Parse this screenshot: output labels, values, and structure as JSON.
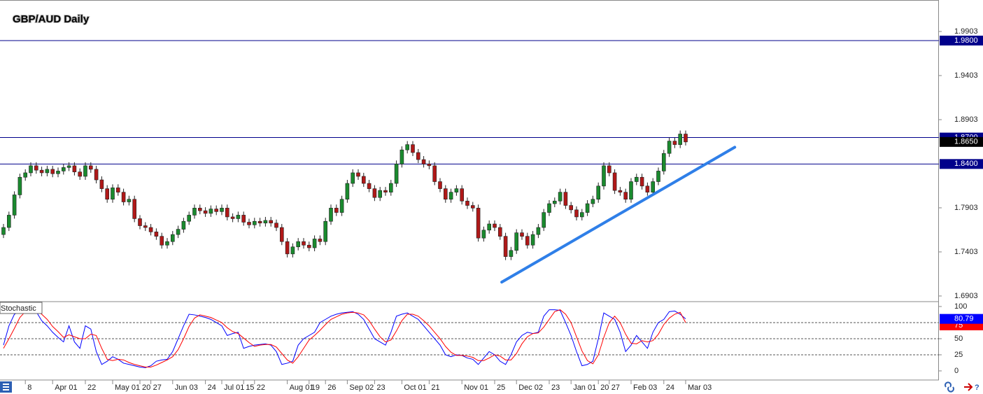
{
  "chart_data": [
    {
      "type": "candlestick",
      "title": "GBP/AUD Daily",
      "categories": [
        null,
        null,
        null,
        null,
        "8",
        null,
        null,
        null,
        null,
        "Apr 01",
        null,
        null,
        null,
        null,
        null,
        "22",
        null,
        null,
        null,
        null,
        "May 01",
        null,
        null,
        null,
        null,
        "20",
        null,
        "27",
        null,
        null,
        null,
        "Jun 03",
        null,
        null,
        null,
        null,
        null,
        "24",
        null,
        null,
        "Jul 01",
        null,
        null,
        null,
        "15",
        null,
        "22",
        null,
        null,
        null,
        null,
        null,
        "Aug 01",
        null,
        null,
        null,
        "19",
        null,
        null,
        "26",
        null,
        null,
        null,
        "Sep 02",
        null,
        null,
        null,
        null,
        "23",
        null,
        null,
        null,
        null,
        "Oct 01",
        null,
        null,
        null,
        null,
        "21",
        null,
        null,
        null,
        null,
        null,
        "Nov 01",
        null,
        null,
        null,
        null,
        null,
        "25",
        null,
        null,
        null,
        "Dec 02",
        null,
        null,
        null,
        null,
        null,
        "23",
        null,
        null,
        null,
        "Jan 01",
        null,
        null,
        null,
        null,
        "20",
        null,
        "27",
        null,
        null,
        null,
        "Feb 03",
        null,
        null,
        null,
        null,
        null,
        "24",
        null,
        null,
        null,
        "Mar 03"
      ],
      "open": [
        1.76,
        1.768,
        1.782,
        1.805,
        1.825,
        1.83,
        1.838,
        1.833,
        1.83,
        1.834,
        1.829,
        1.832,
        1.836,
        1.838,
        1.831,
        1.826,
        1.838,
        1.834,
        1.822,
        1.812,
        1.8,
        1.813,
        1.808,
        1.797,
        1.8,
        1.778,
        1.77,
        1.768,
        1.763,
        1.758,
        1.748,
        1.752,
        1.76,
        1.766,
        1.775,
        1.782,
        1.79,
        1.787,
        1.784,
        1.789,
        1.786,
        1.79,
        1.78,
        1.778,
        1.782,
        1.774,
        1.771,
        1.775,
        1.773,
        1.776,
        1.773,
        1.768,
        1.752,
        1.738,
        1.746,
        1.752,
        1.748,
        1.745,
        1.755,
        1.752,
        1.775,
        1.79,
        1.785,
        1.8,
        1.818,
        1.83,
        1.826,
        1.818,
        1.812,
        1.802,
        1.81,
        1.808,
        1.818,
        1.84,
        1.856,
        1.862,
        1.853,
        1.845,
        1.84,
        1.838,
        1.82,
        1.812,
        1.8,
        1.808,
        1.812,
        1.798,
        1.793,
        1.79,
        1.756,
        1.765,
        1.772,
        1.768,
        1.758,
        1.735,
        1.742,
        1.762,
        1.758,
        1.748,
        1.76,
        1.768,
        1.785,
        1.795,
        1.798,
        1.808,
        1.793,
        1.788,
        1.78,
        1.785,
        1.795,
        1.8,
        1.815,
        1.838,
        1.83,
        1.81,
        1.808,
        1.8,
        1.82,
        1.825,
        1.815,
        1.808,
        1.82,
        1.832,
        1.852,
        1.866,
        1.862,
        1.874
      ],
      "high": [
        1.772,
        1.786,
        1.809,
        1.829,
        1.834,
        1.842,
        1.842,
        1.837,
        1.838,
        1.838,
        1.836,
        1.84,
        1.842,
        1.842,
        1.835,
        1.842,
        1.842,
        1.838,
        1.826,
        1.816,
        1.817,
        1.817,
        1.812,
        1.804,
        1.804,
        1.782,
        1.774,
        1.772,
        1.767,
        1.762,
        1.756,
        1.764,
        1.77,
        1.779,
        1.786,
        1.794,
        1.794,
        1.791,
        1.793,
        1.793,
        1.794,
        1.794,
        1.784,
        1.786,
        1.786,
        1.778,
        1.779,
        1.779,
        1.78,
        1.78,
        1.777,
        1.772,
        1.756,
        1.75,
        1.756,
        1.756,
        1.752,
        1.759,
        1.759,
        1.779,
        1.794,
        1.794,
        1.804,
        1.822,
        1.834,
        1.834,
        1.83,
        1.822,
        1.816,
        1.814,
        1.814,
        1.822,
        1.844,
        1.86,
        1.866,
        1.866,
        1.857,
        1.849,
        1.844,
        1.842,
        1.824,
        1.816,
        1.812,
        1.816,
        1.816,
        1.802,
        1.797,
        1.794,
        1.769,
        1.776,
        1.776,
        1.772,
        1.762,
        1.746,
        1.766,
        1.766,
        1.762,
        1.764,
        1.772,
        1.789,
        1.799,
        1.802,
        1.812,
        1.812,
        1.797,
        1.792,
        1.789,
        1.799,
        1.804,
        1.819,
        1.842,
        1.842,
        1.834,
        1.814,
        1.812,
        1.824,
        1.829,
        1.829,
        1.819,
        1.824,
        1.836,
        1.856,
        1.87,
        1.87,
        1.878,
        1.878
      ],
      "low": [
        1.756,
        1.764,
        1.778,
        1.801,
        1.821,
        1.826,
        1.829,
        1.826,
        1.826,
        1.825,
        1.825,
        1.828,
        1.832,
        1.827,
        1.822,
        1.822,
        1.83,
        1.818,
        1.808,
        1.796,
        1.796,
        1.804,
        1.793,
        1.793,
        1.774,
        1.766,
        1.764,
        1.759,
        1.754,
        1.744,
        1.744,
        1.748,
        1.756,
        1.762,
        1.771,
        1.778,
        1.783,
        1.78,
        1.78,
        1.782,
        1.782,
        1.776,
        1.774,
        1.774,
        1.77,
        1.767,
        1.767,
        1.769,
        1.769,
        1.769,
        1.764,
        1.748,
        1.734,
        1.734,
        1.742,
        1.744,
        1.741,
        1.741,
        1.748,
        1.748,
        1.771,
        1.781,
        1.781,
        1.796,
        1.814,
        1.822,
        1.814,
        1.808,
        1.798,
        1.798,
        1.804,
        1.804,
        1.814,
        1.836,
        1.852,
        1.849,
        1.841,
        1.836,
        1.834,
        1.816,
        1.808,
        1.796,
        1.796,
        1.804,
        1.794,
        1.789,
        1.786,
        1.752,
        1.752,
        1.761,
        1.764,
        1.754,
        1.731,
        1.731,
        1.738,
        1.754,
        1.744,
        1.744,
        1.756,
        1.764,
        1.781,
        1.791,
        1.794,
        1.789,
        1.784,
        1.776,
        1.776,
        1.781,
        1.791,
        1.796,
        1.811,
        1.826,
        1.806,
        1.804,
        1.796,
        1.796,
        1.816,
        1.811,
        1.804,
        1.804,
        1.816,
        1.828,
        1.848,
        1.858,
        1.858,
        1.861
      ],
      "close": [
        1.768,
        1.782,
        1.805,
        1.825,
        1.83,
        1.838,
        1.833,
        1.83,
        1.834,
        1.829,
        1.832,
        1.836,
        1.838,
        1.831,
        1.826,
        1.838,
        1.834,
        1.822,
        1.812,
        1.8,
        1.813,
        1.808,
        1.797,
        1.8,
        1.778,
        1.77,
        1.768,
        1.763,
        1.758,
        1.748,
        1.752,
        1.76,
        1.766,
        1.775,
        1.782,
        1.79,
        1.787,
        1.784,
        1.789,
        1.786,
        1.79,
        1.78,
        1.778,
        1.782,
        1.774,
        1.771,
        1.775,
        1.773,
        1.776,
        1.773,
        1.768,
        1.752,
        1.738,
        1.746,
        1.752,
        1.748,
        1.745,
        1.755,
        1.752,
        1.775,
        1.79,
        1.785,
        1.8,
        1.818,
        1.83,
        1.826,
        1.818,
        1.812,
        1.802,
        1.81,
        1.808,
        1.818,
        1.84,
        1.856,
        1.862,
        1.853,
        1.845,
        1.84,
        1.838,
        1.82,
        1.812,
        1.8,
        1.808,
        1.812,
        1.798,
        1.793,
        1.79,
        1.756,
        1.765,
        1.772,
        1.768,
        1.758,
        1.735,
        1.742,
        1.762,
        1.758,
        1.748,
        1.76,
        1.768,
        1.785,
        1.795,
        1.798,
        1.808,
        1.793,
        1.788,
        1.78,
        1.785,
        1.795,
        1.8,
        1.815,
        1.838,
        1.83,
        1.81,
        1.808,
        1.8,
        1.82,
        1.825,
        1.815,
        1.808,
        1.82,
        1.832,
        1.852,
        1.866,
        1.862,
        1.874,
        1.865
      ],
      "up_color": "#1a8a2e",
      "down_color": "#b01818",
      "wick_color": "#222222",
      "ylim": [
        1.6847,
        2.026
      ],
      "yticks": [
        1.6903,
        1.7403,
        1.7903,
        1.8903,
        1.9403,
        1.9903
      ],
      "levels": [
        {
          "value": 1.98,
          "label": "1.9800"
        },
        {
          "value": 1.87,
          "label": "1.8700"
        },
        {
          "value": 1.84,
          "label": "1.8400"
        }
      ],
      "level_color": "#00008b",
      "current": {
        "value": 1.865,
        "label": "1.8650"
      },
      "trendline": {
        "x": [
          91.3,
          134
        ],
        "y": [
          1.706,
          1.859
        ],
        "color": "#2f7fe8"
      }
    },
    {
      "type": "line",
      "title": "Stochastic",
      "series": [
        {
          "color": "#0000ff",
          "values": [
            40,
            70,
            88,
            92,
            95,
            95,
            92,
            78,
            70,
            60,
            52,
            45,
            70,
            45,
            35,
            70,
            65,
            30,
            10,
            15,
            22,
            18,
            12,
            10,
            8,
            6,
            5,
            8,
            15,
            17,
            18,
            30,
            50,
            70,
            88,
            87,
            85,
            83,
            80,
            75,
            70,
            55,
            58,
            60,
            35,
            38,
            40,
            41,
            42,
            40,
            30,
            10,
            12,
            15,
            40,
            50,
            55,
            60,
            75,
            80,
            85,
            88,
            90,
            91,
            92,
            88,
            80,
            65,
            50,
            45,
            40,
            60,
            85,
            88,
            90,
            85,
            80,
            70,
            60,
            50,
            40,
            25,
            22,
            25,
            24,
            20,
            18,
            10,
            20,
            30,
            25,
            15,
            10,
            25,
            45,
            55,
            60,
            58,
            60,
            85,
            95,
            95,
            94,
            75,
            55,
            30,
            8,
            10,
            15,
            50,
            90,
            85,
            80,
            60,
            30,
            40,
            55,
            45,
            35,
            60,
            75,
            80,
            92,
            93,
            88,
            80.79
          ]
        },
        {
          "color": "#ff0000",
          "values": [
            35,
            50,
            66,
            83,
            92,
            94,
            94,
            88,
            80,
            69,
            61,
            52,
            56,
            53,
            50,
            50,
            57,
            55,
            35,
            18,
            16,
            18,
            17,
            13,
            10,
            8,
            6,
            6,
            9,
            13,
            17,
            22,
            33,
            50,
            69,
            82,
            87,
            85,
            83,
            79,
            75,
            67,
            61,
            58,
            51,
            44,
            38,
            40,
            41,
            41,
            37,
            27,
            17,
            12,
            22,
            35,
            48,
            55,
            63,
            72,
            80,
            84,
            88,
            90,
            91,
            90,
            87,
            78,
            65,
            53,
            45,
            48,
            62,
            78,
            88,
            88,
            85,
            78,
            70,
            60,
            50,
            38,
            29,
            24,
            24,
            23,
            21,
            16,
            16,
            20,
            25,
            23,
            17,
            17,
            27,
            42,
            53,
            58,
            59,
            68,
            80,
            92,
            95,
            88,
            75,
            53,
            31,
            16,
            11,
            25,
            52,
            75,
            85,
            75,
            57,
            43,
            42,
            47,
            45,
            47,
            57,
            72,
            82,
            88,
            91,
            75
          ]
        }
      ],
      "ylim": [
        -10.9,
        106.5
      ],
      "yticks": [
        0,
        25,
        50,
        100
      ],
      "levels": [
        75,
        50,
        25
      ]
    }
  ]
}
